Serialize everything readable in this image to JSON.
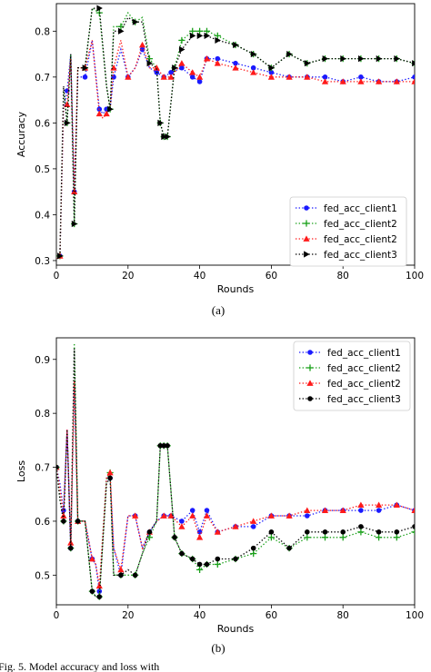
{
  "figure": {
    "caption": "Fig. 5. Model accuracy and loss with",
    "sublabels": [
      "(a)",
      "(b)"
    ]
  },
  "colors": {
    "client1": "#1a1aff",
    "client2": "#1aa01a",
    "client2b": "#ff1a1a",
    "client3": "#000000"
  },
  "chart_data": [
    {
      "type": "line",
      "xlabel": "Rounds",
      "ylabel": "Accuracy",
      "xlim": [
        0,
        100
      ],
      "ylim": [
        0.29,
        0.86
      ],
      "xticks": [
        0,
        20,
        40,
        60,
        80,
        100
      ],
      "yticks": [
        0.3,
        0.4,
        0.5,
        0.6,
        0.7,
        0.8
      ],
      "legend_position": "lower-right",
      "series": [
        {
          "name": "fed_acc_client1",
          "color": "#1a1aff",
          "marker": "circle",
          "x": [
            1,
            2,
            3,
            4,
            5,
            6,
            8,
            10,
            12,
            13,
            14,
            15,
            16,
            18,
            20,
            22,
            24,
            26,
            28,
            30,
            32,
            35,
            38,
            40,
            42,
            45,
            50,
            55,
            60,
            65,
            70,
            75,
            80,
            85,
            90,
            95,
            100
          ],
          "values": [
            0.31,
            0.63,
            0.67,
            0.75,
            0.45,
            0.7,
            0.7,
            0.78,
            0.63,
            0.62,
            0.63,
            0.63,
            0.7,
            0.76,
            0.7,
            0.72,
            0.76,
            0.72,
            0.71,
            0.7,
            0.71,
            0.72,
            0.7,
            0.69,
            0.74,
            0.74,
            0.73,
            0.72,
            0.71,
            0.7,
            0.7,
            0.7,
            0.69,
            0.7,
            0.69,
            0.69,
            0.7
          ]
        },
        {
          "name": "fed_acc_client2",
          "color": "#1aa01a",
          "marker": "plus",
          "x": [
            1,
            2,
            3,
            4,
            5,
            6,
            8,
            10,
            12,
            14,
            15,
            16,
            18,
            20,
            22,
            24,
            26,
            28,
            29,
            30,
            31,
            33,
            35,
            38,
            40,
            42,
            45,
            50,
            55,
            60,
            65,
            70,
            75,
            80,
            85,
            90,
            95,
            100
          ],
          "values": [
            0.31,
            0.67,
            0.6,
            0.75,
            0.38,
            0.72,
            0.72,
            0.85,
            0.84,
            0.68,
            0.63,
            0.81,
            0.81,
            0.84,
            0.82,
            0.83,
            0.74,
            0.72,
            0.6,
            0.57,
            0.57,
            0.72,
            0.78,
            0.8,
            0.8,
            0.8,
            0.79,
            0.77,
            0.75,
            0.72,
            0.75,
            0.73,
            0.74,
            0.74,
            0.74,
            0.74,
            0.74,
            0.73
          ]
        },
        {
          "name": "fed_acc_client2",
          "color": "#ff1a1a",
          "marker": "triangle",
          "x": [
            1,
            2,
            3,
            4,
            5,
            6,
            8,
            10,
            12,
            13,
            14,
            15,
            16,
            18,
            20,
            22,
            24,
            26,
            28,
            30,
            32,
            35,
            38,
            40,
            42,
            45,
            50,
            55,
            60,
            65,
            70,
            75,
            80,
            85,
            90,
            95,
            100
          ],
          "values": [
            0.31,
            0.64,
            0.64,
            0.74,
            0.45,
            0.72,
            0.72,
            0.78,
            0.62,
            0.61,
            0.62,
            0.63,
            0.72,
            0.78,
            0.7,
            0.72,
            0.77,
            0.72,
            0.72,
            0.7,
            0.7,
            0.73,
            0.71,
            0.7,
            0.74,
            0.73,
            0.72,
            0.71,
            0.7,
            0.7,
            0.7,
            0.69,
            0.69,
            0.69,
            0.69,
            0.69,
            0.69
          ]
        },
        {
          "name": "fed_acc_client3",
          "color": "#000000",
          "marker": "triangle-right",
          "x": [
            1,
            2,
            3,
            4,
            5,
            6,
            8,
            10,
            12,
            14,
            15,
            16,
            18,
            20,
            22,
            24,
            26,
            28,
            29,
            30,
            31,
            33,
            35,
            38,
            40,
            42,
            45,
            50,
            55,
            60,
            65,
            70,
            75,
            80,
            85,
            90,
            95,
            100
          ],
          "values": [
            0.31,
            0.68,
            0.6,
            0.75,
            0.38,
            0.72,
            0.72,
            0.85,
            0.85,
            0.68,
            0.63,
            0.8,
            0.8,
            0.83,
            0.82,
            0.82,
            0.73,
            0.72,
            0.6,
            0.57,
            0.57,
            0.72,
            0.76,
            0.79,
            0.79,
            0.79,
            0.78,
            0.77,
            0.75,
            0.72,
            0.75,
            0.73,
            0.74,
            0.74,
            0.74,
            0.74,
            0.74,
            0.73
          ]
        }
      ]
    },
    {
      "type": "line",
      "xlabel": "Rounds",
      "ylabel": "Loss",
      "xlim": [
        0,
        100
      ],
      "ylim": [
        0.445,
        0.94
      ],
      "xticks": [
        0,
        20,
        40,
        60,
        80,
        100
      ],
      "yticks": [
        0.5,
        0.6,
        0.7,
        0.8,
        0.9
      ],
      "legend_position": "top-right",
      "series": [
        {
          "name": "fed_acc_client1",
          "color": "#1a1aff",
          "marker": "circle",
          "x": [
            0,
            1,
            2,
            3,
            4,
            5,
            6,
            8,
            10,
            11,
            12,
            14,
            15,
            16,
            18,
            20,
            22,
            24,
            26,
            28,
            30,
            32,
            35,
            38,
            40,
            42,
            45,
            50,
            55,
            60,
            65,
            70,
            75,
            80,
            85,
            90,
            95,
            100
          ],
          "values": [
            0.7,
            0.67,
            0.62,
            0.77,
            0.55,
            0.85,
            0.6,
            0.6,
            0.53,
            0.52,
            0.47,
            0.68,
            0.68,
            0.55,
            0.5,
            0.61,
            0.61,
            0.55,
            0.58,
            0.6,
            0.61,
            0.61,
            0.6,
            0.62,
            0.58,
            0.62,
            0.58,
            0.59,
            0.59,
            0.61,
            0.61,
            0.61,
            0.62,
            0.62,
            0.62,
            0.62,
            0.63,
            0.62
          ]
        },
        {
          "name": "fed_acc_client2",
          "color": "#1aa01a",
          "marker": "plus",
          "x": [
            0,
            1,
            2,
            3,
            4,
            5,
            6,
            8,
            10,
            11,
            12,
            14,
            15,
            16,
            18,
            20,
            22,
            24,
            26,
            28,
            29,
            30,
            31,
            33,
            35,
            38,
            40,
            42,
            45,
            50,
            55,
            60,
            65,
            70,
            75,
            80,
            85,
            90,
            95,
            100
          ],
          "values": [
            0.7,
            0.64,
            0.6,
            0.77,
            0.55,
            0.93,
            0.6,
            0.6,
            0.47,
            0.46,
            0.46,
            0.68,
            0.69,
            0.5,
            0.5,
            0.5,
            0.5,
            0.54,
            0.57,
            0.6,
            0.74,
            0.74,
            0.74,
            0.57,
            0.54,
            0.53,
            0.51,
            0.52,
            0.52,
            0.53,
            0.54,
            0.57,
            0.55,
            0.57,
            0.57,
            0.57,
            0.58,
            0.57,
            0.57,
            0.58
          ]
        },
        {
          "name": "fed_acc_client2",
          "color": "#ff1a1a",
          "marker": "triangle",
          "x": [
            0,
            1,
            2,
            3,
            4,
            5,
            6,
            8,
            10,
            11,
            12,
            14,
            15,
            16,
            18,
            20,
            22,
            24,
            26,
            28,
            30,
            32,
            35,
            38,
            40,
            42,
            45,
            50,
            55,
            60,
            65,
            70,
            75,
            80,
            85,
            90,
            95,
            100
          ],
          "values": [
            0.7,
            0.66,
            0.61,
            0.77,
            0.56,
            0.86,
            0.6,
            0.6,
            0.53,
            0.52,
            0.48,
            0.68,
            0.69,
            0.55,
            0.51,
            0.61,
            0.61,
            0.55,
            0.58,
            0.6,
            0.61,
            0.61,
            0.59,
            0.61,
            0.57,
            0.61,
            0.58,
            0.59,
            0.6,
            0.61,
            0.61,
            0.62,
            0.62,
            0.62,
            0.63,
            0.63,
            0.63,
            0.62
          ]
        },
        {
          "name": "fed_acc_client3",
          "color": "#000000",
          "marker": "circle",
          "x": [
            0,
            1,
            2,
            3,
            4,
            5,
            6,
            8,
            10,
            11,
            12,
            14,
            15,
            16,
            18,
            20,
            22,
            24,
            26,
            28,
            29,
            30,
            31,
            33,
            35,
            38,
            40,
            42,
            45,
            50,
            55,
            60,
            65,
            70,
            75,
            80,
            85,
            90,
            95,
            100
          ],
          "values": [
            0.7,
            0.64,
            0.6,
            0.77,
            0.55,
            0.92,
            0.6,
            0.6,
            0.47,
            0.46,
            0.46,
            0.67,
            0.68,
            0.5,
            0.5,
            0.51,
            0.5,
            0.54,
            0.58,
            0.6,
            0.74,
            0.74,
            0.74,
            0.57,
            0.54,
            0.53,
            0.52,
            0.52,
            0.53,
            0.53,
            0.55,
            0.58,
            0.55,
            0.58,
            0.58,
            0.58,
            0.59,
            0.58,
            0.58,
            0.59
          ]
        }
      ]
    }
  ]
}
